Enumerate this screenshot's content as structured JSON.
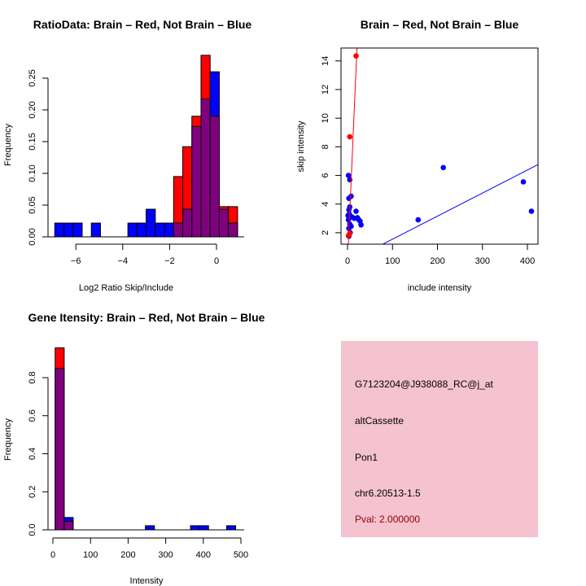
{
  "colors": {
    "brain": "#ff0000",
    "not_brain": "#0000ff",
    "overlap": "#800080",
    "panel_bg": "#f5c3cf",
    "pval_text": "#8b0000"
  },
  "chart_data": [
    {
      "type": "bar",
      "title": "RatioData: Brain – Red, Not Brain – Blue",
      "xlabel": "Log2 Ratio Skip/Include",
      "ylabel": "Frequency",
      "xticks": [
        -6,
        -4,
        -2,
        0
      ],
      "yticks": [
        "0.00",
        "0.05",
        "0.10",
        "0.15",
        "0.20",
        "0.25"
      ],
      "bin_start": -6.9,
      "bin_width": 0.39,
      "series": [
        {
          "name": "Brain",
          "color": "red",
          "values": [
            0,
            0,
            0,
            0,
            0,
            0,
            0,
            0,
            0,
            0,
            0,
            0,
            0,
            0.095,
            0.142,
            0.19,
            0.286,
            0.19,
            0.0476,
            0.0476
          ]
        },
        {
          "name": "Not Brain",
          "color": "blue",
          "values": [
            0.0217,
            0.0217,
            0.0217,
            0,
            0.0217,
            0,
            0,
            0,
            0.0217,
            0.0217,
            0.0435,
            0.0217,
            0.0217,
            0.0217,
            0.0435,
            0.174,
            0.217,
            0.26,
            0.0435,
            0.0217
          ]
        }
      ]
    },
    {
      "type": "scatter",
      "title": "Brain – Red, Not Brain – Blue",
      "xlabel": "include intensity",
      "ylabel": "skip intensity",
      "xlim": [
        -14.5,
        423.5
      ],
      "ylim": [
        1.2,
        14.9
      ],
      "xticks": [
        0,
        100,
        200,
        300,
        400
      ],
      "yticks": [
        2,
        4,
        6,
        8,
        10,
        12,
        14
      ],
      "series": [
        {
          "name": "Not Brain",
          "color": "blue",
          "points": [
            [
              2,
              6
            ],
            [
              5,
              5.7
            ],
            [
              3,
              4.4
            ],
            [
              8,
              4.55
            ],
            [
              5,
              3.8
            ],
            [
              3,
              3.6
            ],
            [
              19,
              3.5
            ],
            [
              4,
              3.3
            ],
            [
              10,
              3.1
            ],
            [
              15,
              3.0
            ],
            [
              22,
              3.05
            ],
            [
              25,
              2.9
            ],
            [
              28,
              2.8
            ],
            [
              30,
              2.55
            ],
            [
              8,
              2.45
            ],
            [
              3,
              2.3
            ],
            [
              5,
              2.6
            ],
            [
              2,
              2.9
            ],
            [
              3,
              1.75
            ],
            [
              1,
              3.2
            ],
            [
              6,
              2.0
            ],
            [
              157,
              2.9
            ],
            [
              213,
              6.55
            ],
            [
              391,
              5.55
            ],
            [
              409,
              3.5
            ]
          ],
          "fit": {
            "intercept": -0.06,
            "slope": 0.0161
          }
        },
        {
          "name": "Brain",
          "color": "red",
          "points": [
            [
              19,
              14.35
            ],
            [
              5,
              8.7
            ],
            [
              5,
              1.95
            ],
            [
              2,
              1.8
            ]
          ],
          "fit": {
            "intercept": -0.13,
            "slope": 0.716
          }
        }
      ]
    },
    {
      "type": "bar",
      "title": "Gene Itensity: Brain – Red, Not Brain – Blue",
      "xlabel": "Intensity",
      "ylabel": "Frequency",
      "xticks": [
        0,
        100,
        200,
        300,
        400,
        500
      ],
      "yticks": [
        "0.0",
        "0.2",
        "0.4",
        "0.6",
        "0.8"
      ],
      "bin_start": 6,
      "bin_width": 24,
      "series": [
        {
          "name": "Brain",
          "color": "red",
          "values": [
            0.957,
            0.045,
            0,
            0,
            0,
            0,
            0,
            0,
            0,
            0,
            0,
            0,
            0,
            0,
            0,
            0,
            0,
            0,
            0,
            0
          ]
        },
        {
          "name": "Not Brain",
          "color": "blue",
          "values": [
            0.848,
            0.065,
            0,
            0,
            0,
            0,
            0,
            0,
            0,
            0,
            0.0217,
            0,
            0,
            0,
            0,
            0.0217,
            0.0217,
            0,
            0,
            0.0217
          ]
        }
      ]
    }
  ],
  "info_panel": {
    "probe_id": "G7123204@J938088_RC@j_at",
    "event_type": "altCassette",
    "gene": "Pon1",
    "location": "chr6.20513-1.5",
    "pval": "Pval: 2.000000"
  }
}
